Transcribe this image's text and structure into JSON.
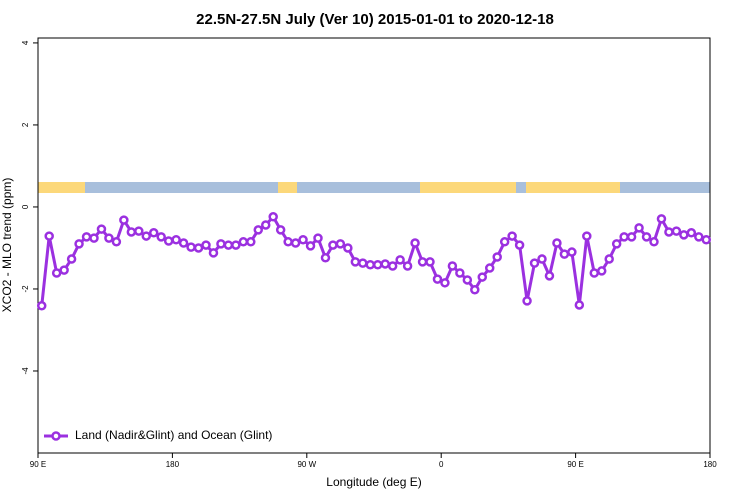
{
  "chart_data": {
    "type": "line",
    "title": "22.5N-27.5N July (Ver 10)   2015-01-01 to 2020-12-18",
    "x_label": "Longitude (deg E)",
    "y_label": "XCO2 - MLO trend (ppm)",
    "x": [
      92.5,
      97.5,
      102.5,
      107.5,
      112.5,
      117.5,
      122.5,
      127.5,
      132.5,
      137.5,
      142.5,
      147.5,
      152.5,
      157.5,
      162.5,
      167.5,
      172.5,
      177.5,
      182.5,
      187.5,
      192.5,
      197.5,
      202.5,
      207.5,
      212.5,
      217.5,
      222.5,
      227.5,
      232.5,
      237.5,
      242.5,
      247.5,
      252.5,
      257.5,
      262.5,
      267.5,
      272.5,
      277.5,
      282.5,
      287.5,
      292.5,
      297.5,
      302.5,
      307.5,
      312.5,
      317.5,
      322.5,
      327.5,
      332.5,
      337.5,
      342.5,
      347.5,
      352.5,
      357.5,
      362.5,
      367.5,
      372.5,
      377.5,
      382.5,
      387.5,
      392.5,
      397.5,
      402.5,
      407.5,
      412.5,
      417.5,
      422.5,
      427.5,
      432.5,
      437.5,
      442.5,
      447.5,
      452.5,
      457.5,
      462.5,
      467.5,
      472.5,
      477.5,
      482.5,
      487.5,
      492.5,
      497.5,
      502.5,
      507.5,
      512.5,
      517.5,
      522.5,
      527.5,
      532.5,
      537.5
    ],
    "series": [
      {
        "name": "Land (Nadir&Glint) and Ocean (Glint)",
        "color": "#9b30e0",
        "values": [
          -2.41,
          -0.71,
          -1.61,
          -1.54,
          -1.27,
          -0.9,
          -0.73,
          -0.76,
          -0.54,
          -0.76,
          -0.85,
          -0.32,
          -0.61,
          -0.59,
          -0.71,
          -0.63,
          -0.73,
          -0.83,
          -0.8,
          -0.88,
          -0.98,
          -1.0,
          -0.93,
          -1.12,
          -0.9,
          -0.93,
          -0.93,
          -0.85,
          -0.85,
          -0.56,
          -0.44,
          -0.24,
          -0.56,
          -0.85,
          -0.88,
          -0.8,
          -0.95,
          -0.76,
          -1.24,
          -0.93,
          -0.9,
          -1.0,
          -1.34,
          -1.37,
          -1.41,
          -1.41,
          -1.39,
          -1.44,
          -1.29,
          -1.44,
          -0.88,
          -1.34,
          -1.34,
          -1.76,
          -1.85,
          -1.44,
          -1.61,
          -1.78,
          -2.02,
          -1.71,
          -1.49,
          -1.22,
          -0.85,
          -0.71,
          -0.93,
          -2.29,
          -1.37,
          -1.27,
          -1.68,
          -0.88,
          -1.15,
          -1.1,
          -2.39,
          -0.71,
          -1.61,
          -1.56,
          -1.27,
          -0.9,
          -0.73,
          -0.73,
          -0.51,
          -0.73,
          -0.85,
          -0.29,
          -0.61,
          -0.59,
          -0.68,
          -0.63,
          -0.73,
          -0.8
        ]
      }
    ],
    "xlim": [
      90,
      540
    ],
    "xticks": [
      {
        "value": 90,
        "label": "90 E"
      },
      180,
      {
        "value": 270,
        "label": "90 W"
      },
      {
        "value": 360,
        "label": "0"
      },
      {
        "value": 450,
        "label": "90 E"
      },
      {
        "value": 540,
        "label": "180"
      }
    ],
    "ylim": [
      -6,
      4.12
    ],
    "yticks": [
      -4,
      -2,
      0,
      2,
      4
    ],
    "legend": "bottom left"
  }
}
